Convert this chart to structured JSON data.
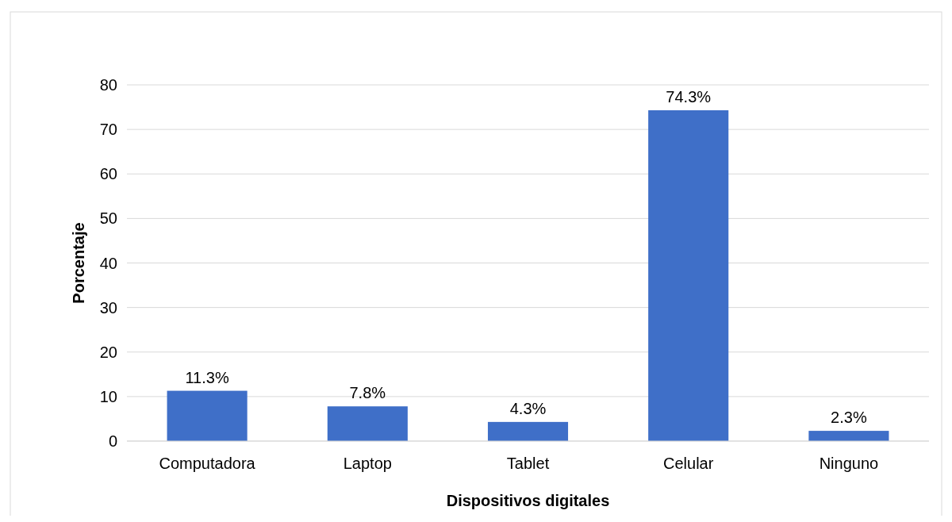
{
  "chart_data": {
    "type": "bar",
    "xlabel": "Dispositivos digitales",
    "ylabel": "Porcentaje",
    "categories": [
      "Computadora",
      "Laptop",
      "Tablet",
      "Celular",
      "Ninguno"
    ],
    "values": [
      11.3,
      7.8,
      4.3,
      74.3,
      2.3
    ],
    "value_labels": [
      "11.3%",
      "7.8%",
      "4.3%",
      "74.3%",
      "2.3%"
    ],
    "color": "#3f6fc8",
    "ylim": [
      0,
      80
    ],
    "yticks": [
      0,
      10,
      20,
      30,
      40,
      50,
      60,
      70,
      80
    ],
    "grid": "y"
  }
}
